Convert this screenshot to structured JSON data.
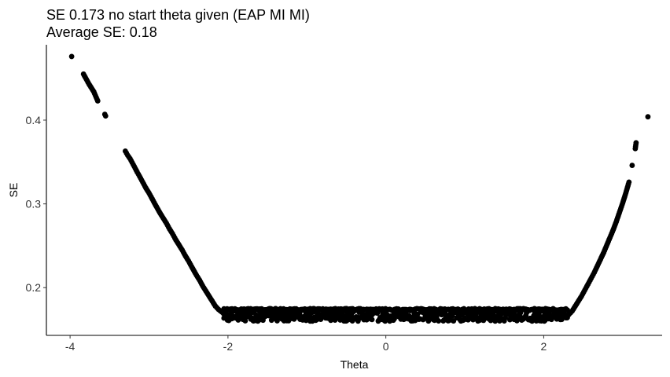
{
  "chart_data": {
    "type": "scatter",
    "title": "SE 0.173 no start theta given (EAP MI MI)",
    "subtitle": "Average SE: 0.18",
    "xlabel": "Theta",
    "ylabel": "SE",
    "xlim": [
      -4.3,
      3.5
    ],
    "ylim": [
      0.143,
      0.49
    ],
    "x_ticks": [
      -4,
      -2,
      0,
      2
    ],
    "x_tick_labels": [
      "-4",
      "-2",
      "0",
      "2"
    ],
    "y_ticks": [
      0.2,
      0.3,
      0.4
    ],
    "y_tick_labels": [
      "0.2",
      "0.3",
      "0.4"
    ],
    "grid": false,
    "legend": "none",
    "point_color": "#000000",
    "left_branch": [
      [
        -3.98,
        0.476
      ],
      [
        -3.83,
        0.455
      ],
      [
        -3.76,
        0.443
      ],
      [
        -3.7,
        0.434
      ],
      [
        -3.65,
        0.423
      ],
      [
        -3.56,
        0.407
      ],
      [
        -3.55,
        0.405
      ],
      [
        -3.3,
        0.363
      ],
      [
        -3.27,
        0.358
      ],
      [
        -3.24,
        0.354
      ],
      [
        -3.2,
        0.347
      ],
      [
        -3.15,
        0.338
      ],
      [
        -3.12,
        0.333
      ],
      [
        -3.08,
        0.326
      ],
      [
        -3.04,
        0.319
      ],
      [
        -3.0,
        0.313
      ],
      [
        -2.96,
        0.306
      ],
      [
        -2.92,
        0.299
      ],
      [
        -2.86,
        0.289
      ],
      [
        -2.82,
        0.283
      ],
      [
        -2.78,
        0.277
      ],
      [
        -2.74,
        0.27
      ],
      [
        -2.7,
        0.264
      ],
      [
        -2.66,
        0.257
      ],
      [
        -2.62,
        0.251
      ],
      [
        -2.58,
        0.245
      ],
      [
        -2.54,
        0.238
      ],
      [
        -2.5,
        0.232
      ],
      [
        -2.46,
        0.225
      ],
      [
        -2.4,
        0.215
      ],
      [
        -2.36,
        0.209
      ],
      [
        -2.32,
        0.202
      ],
      [
        -2.28,
        0.196
      ],
      [
        -2.24,
        0.19
      ],
      [
        -2.2,
        0.184
      ],
      [
        -2.16,
        0.178
      ],
      [
        -2.12,
        0.174
      ],
      [
        -2.08,
        0.171
      ],
      [
        -2.04,
        0.168
      ],
      [
        -2.0,
        0.165
      ]
    ],
    "right_branch": [
      [
        2.28,
        0.164
      ],
      [
        2.32,
        0.168
      ],
      [
        2.36,
        0.172
      ],
      [
        2.4,
        0.178
      ],
      [
        2.44,
        0.184
      ],
      [
        2.48,
        0.19
      ],
      [
        2.52,
        0.197
      ],
      [
        2.56,
        0.204
      ],
      [
        2.6,
        0.211
      ],
      [
        2.64,
        0.218
      ],
      [
        2.68,
        0.226
      ],
      [
        2.72,
        0.234
      ],
      [
        2.76,
        0.242
      ],
      [
        2.8,
        0.251
      ],
      [
        2.84,
        0.26
      ],
      [
        2.88,
        0.269
      ],
      [
        2.92,
        0.279
      ],
      [
        2.96,
        0.29
      ],
      [
        3.0,
        0.301
      ],
      [
        3.04,
        0.313
      ],
      [
        3.08,
        0.326
      ],
      [
        3.12,
        0.346
      ],
      [
        3.16,
        0.366
      ],
      [
        3.17,
        0.373
      ],
      [
        3.32,
        0.404
      ]
    ],
    "plateau": {
      "x_range": [
        -2.05,
        2.3
      ],
      "se_center": 0.168,
      "se_spread": [
        0.16,
        0.175
      ]
    }
  }
}
